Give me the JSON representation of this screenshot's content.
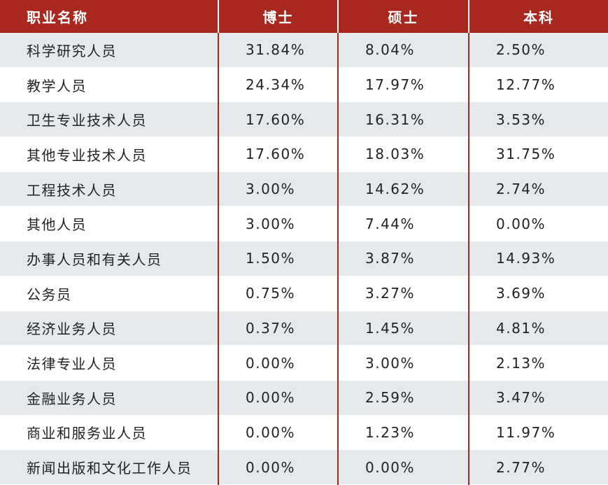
{
  "header": [
    "职业名称",
    "博士",
    "硕士",
    "本科"
  ],
  "rows": [
    [
      "科学研究人员",
      "31.84%",
      "8.04%",
      "2.50%"
    ],
    [
      "教学人员",
      "24.34%",
      "17.97%",
      "12.77%"
    ],
    [
      "卫生专业技术人员",
      "17.60%",
      "16.31%",
      "3.53%"
    ],
    [
      "其他专业技术人员",
      "17.60%",
      "18.03%",
      "31.75%"
    ],
    [
      "工程技术人员",
      "3.00%",
      "14.62%",
      "2.74%"
    ],
    [
      "其他人员",
      "3.00%",
      "7.44%",
      "0.00%"
    ],
    [
      "办事人员和有关人员",
      "1.50%",
      "3.87%",
      "14.93%"
    ],
    [
      "公务员",
      "0.75%",
      "3.27%",
      "3.69%"
    ],
    [
      "经济业务人员",
      "0.37%",
      "1.45%",
      "4.81%"
    ],
    [
      "法律专业人员",
      "0.00%",
      "3.00%",
      "2.13%"
    ],
    [
      "金融业务人员",
      "0.00%",
      "2.59%",
      "3.47%"
    ],
    [
      "商业和服务业人员",
      "0.00%",
      "1.23%",
      "11.97%"
    ],
    [
      "新闻出版和文化工作人员",
      "0.00%",
      "0.00%",
      "2.77%"
    ]
  ],
  "colors": {
    "header_bg": "#a8281f",
    "stripe_bg": "#e5e9ec",
    "divider": "#a8281f"
  }
}
